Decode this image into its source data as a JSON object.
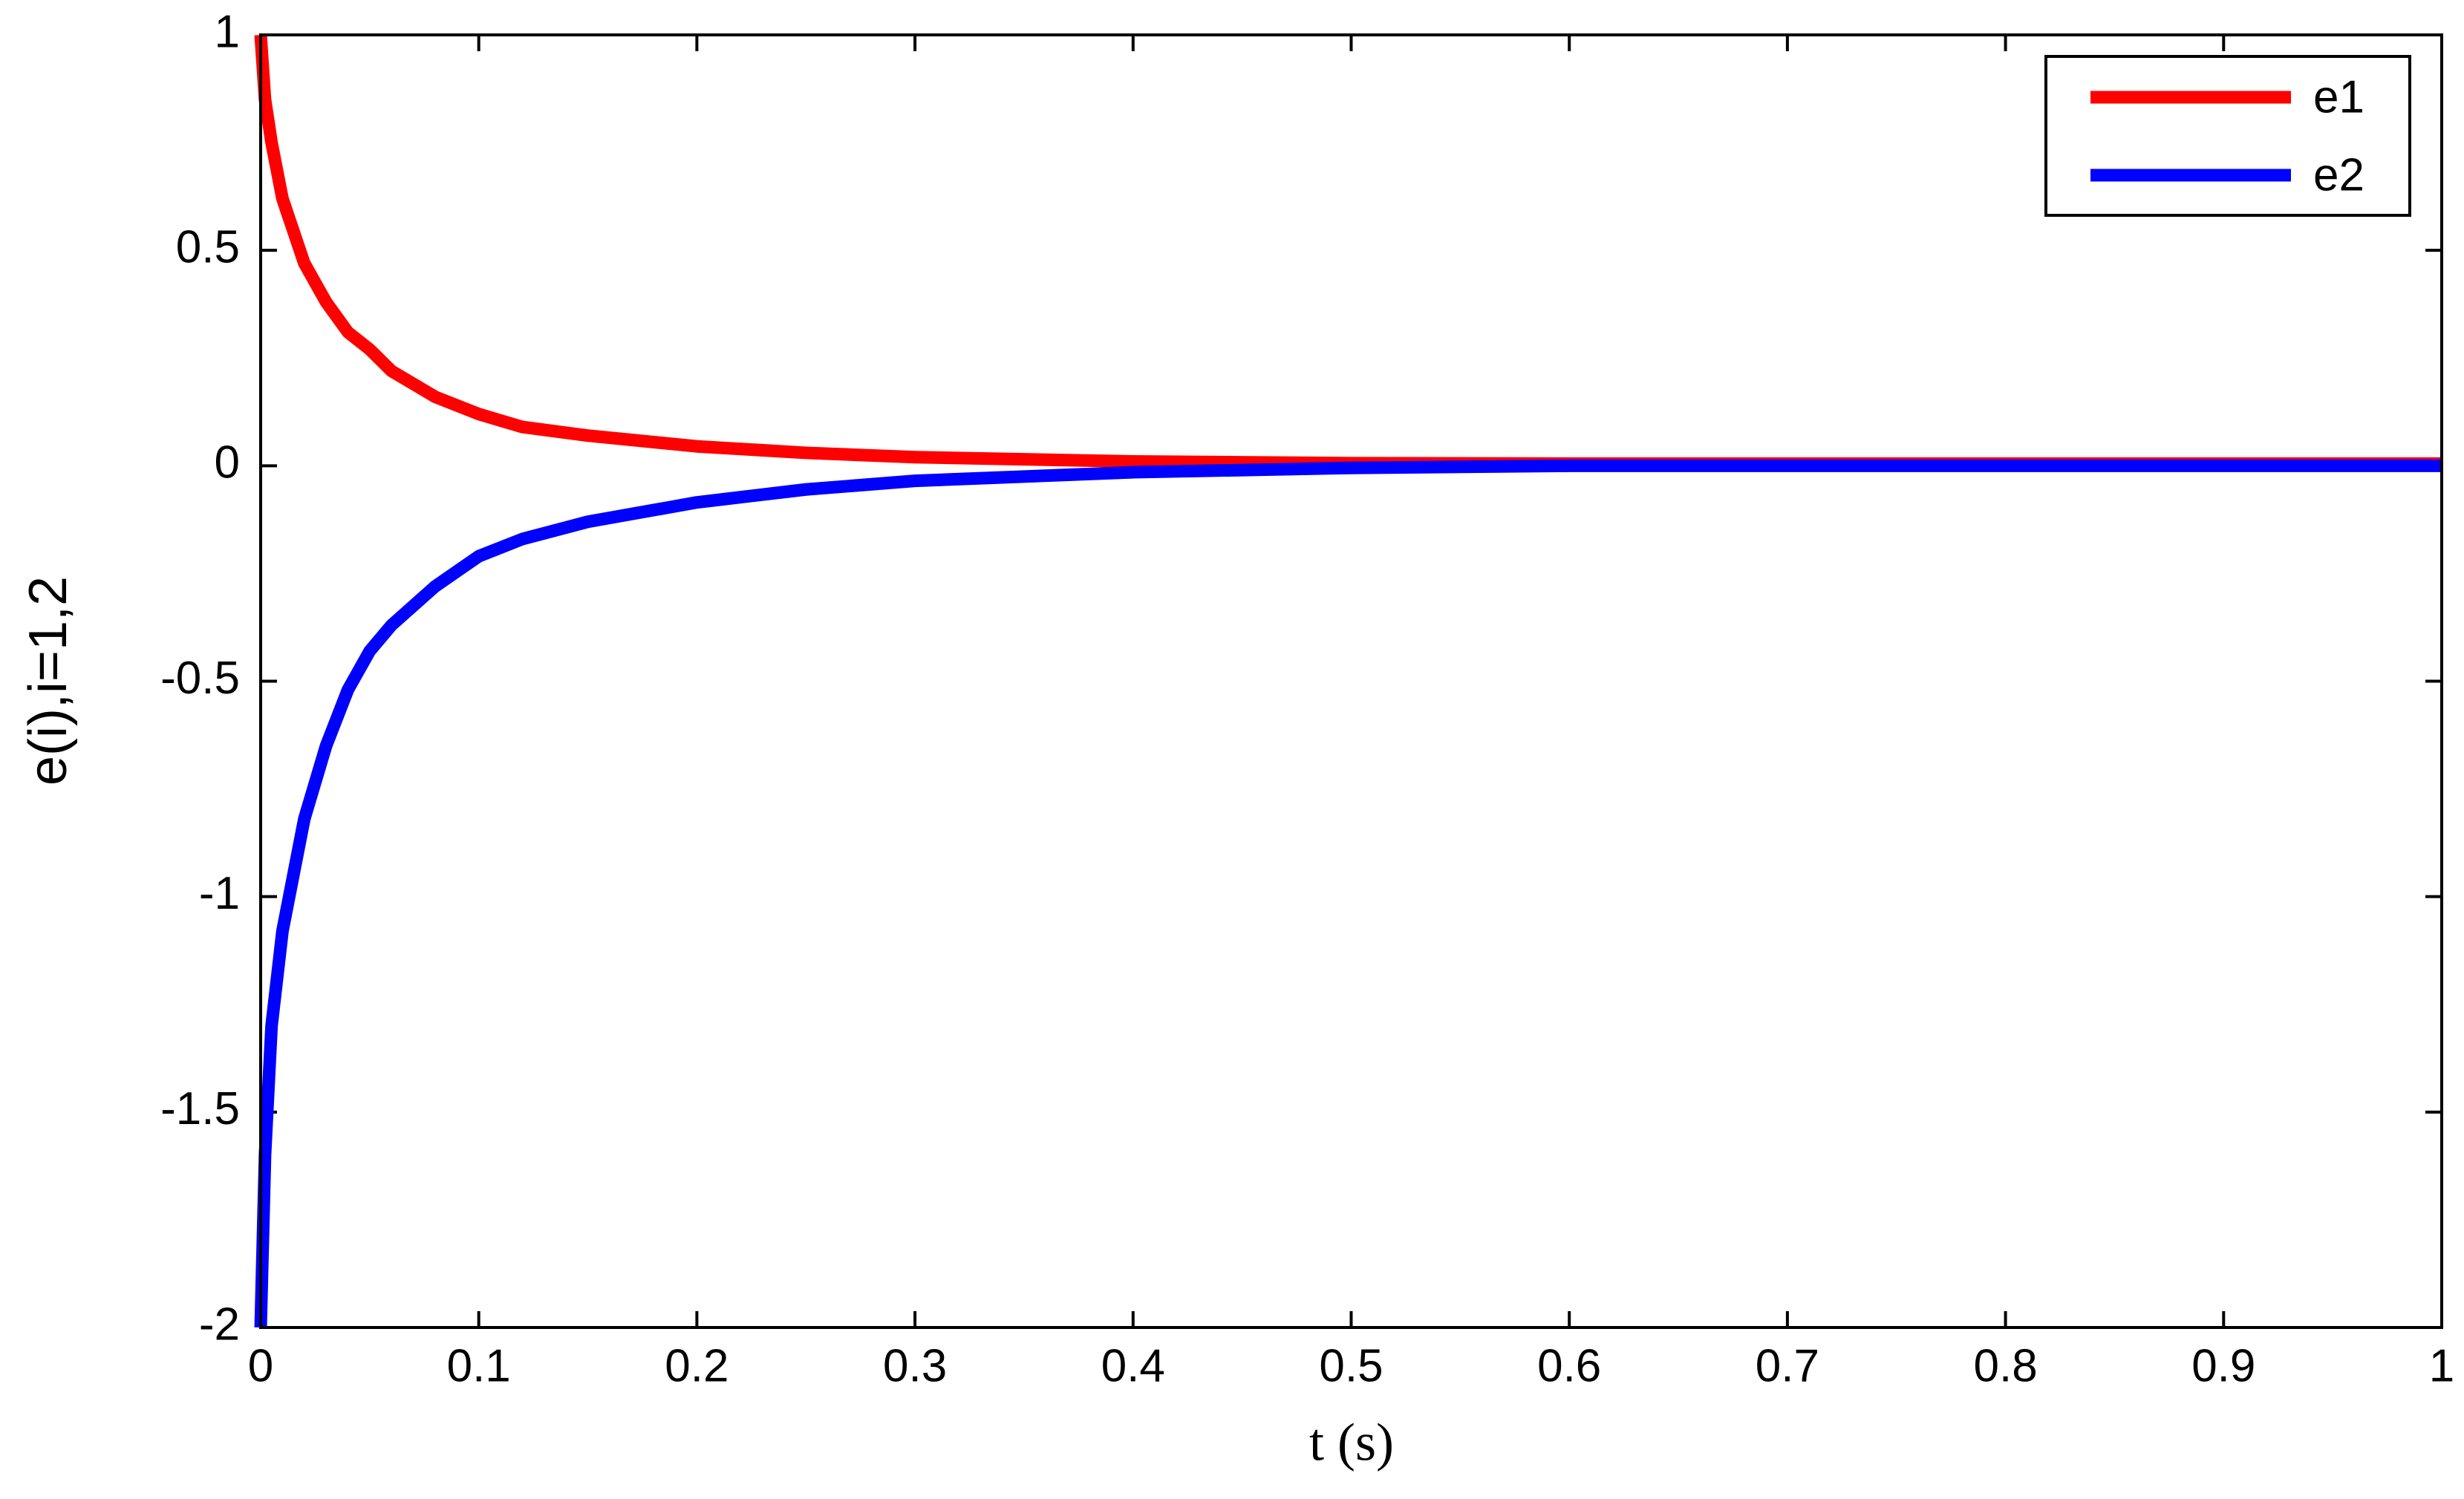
{
  "chart_data": {
    "type": "line",
    "xlabel": "t (s)",
    "ylabel": "e(i),i=1,2",
    "x": [
      0,
      0.002,
      0.005,
      0.01,
      0.02,
      0.03,
      0.04,
      0.05,
      0.06,
      0.08,
      0.1,
      0.12,
      0.15,
      0.2,
      0.25,
      0.3,
      0.4,
      0.5,
      0.6,
      0.8,
      1
    ],
    "series": [
      {
        "name": "e1",
        "color": "#ff0000",
        "values": [
          1,
          0.85,
          0.75,
          0.62,
          0.47,
          0.38,
          0.31,
          0.27,
          0.22,
          0.16,
          0.12,
          0.09,
          0.07,
          0.045,
          0.03,
          0.02,
          0.01,
          0.006,
          0.005,
          0.005,
          0.005
        ]
      },
      {
        "name": "e2",
        "color": "#0000ff",
        "values": [
          -2,
          -1.6,
          -1.3,
          -1.08,
          -0.82,
          -0.65,
          -0.52,
          -0.43,
          -0.37,
          -0.28,
          -0.21,
          -0.17,
          -0.13,
          -0.085,
          -0.055,
          -0.035,
          -0.015,
          -0.005,
          0,
          0,
          0
        ]
      }
    ],
    "xlim": [
      0,
      1
    ],
    "xticks": [
      0,
      0.1,
      0.2,
      0.3,
      0.4,
      0.5,
      0.6,
      0.7,
      0.8,
      0.9,
      1
    ],
    "ylim": [
      -2,
      1
    ],
    "yticks": [
      -2,
      -1.5,
      -1,
      -0.5,
      0,
      0.5,
      1
    ],
    "grid": false,
    "legend": "upper right"
  }
}
